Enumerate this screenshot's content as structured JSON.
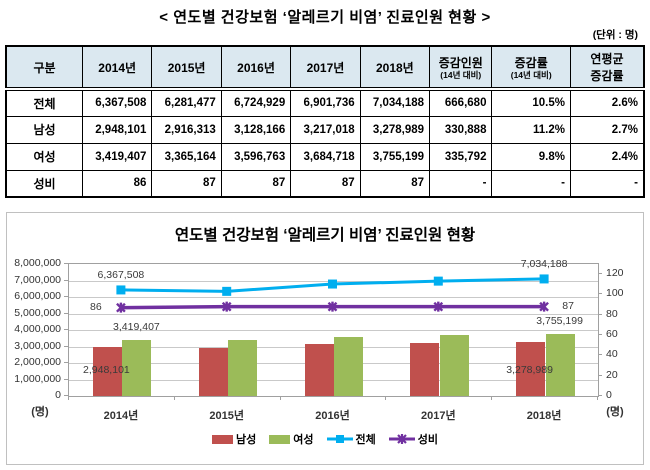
{
  "page": {
    "title": "< 연도별 건강보험 ‘알레르기 비염’ 진료인원 현황 >",
    "unit_note": "(단위 : 명)"
  },
  "table": {
    "columns": [
      {
        "label": "구분"
      },
      {
        "label": "2014년"
      },
      {
        "label": "2015년"
      },
      {
        "label": "2016년"
      },
      {
        "label": "2017년"
      },
      {
        "label": "2018년"
      },
      {
        "label": "증감인원",
        "sub": "(14년 대비)"
      },
      {
        "label": "증감률",
        "sub": "(14년 대비)"
      },
      {
        "label": "연평균",
        "label2": "증감률"
      }
    ],
    "rows": [
      {
        "name": "전체",
        "values": [
          "6,367,508",
          "6,281,477",
          "6,724,929",
          "6,901,736",
          "7,034,188",
          "666,680",
          "10.5%",
          "2.6%"
        ]
      },
      {
        "name": "남성",
        "values": [
          "2,948,101",
          "2,916,313",
          "3,128,166",
          "3,217,018",
          "3,278,989",
          "330,888",
          "11.2%",
          "2.7%"
        ]
      },
      {
        "name": "여성",
        "values": [
          "3,419,407",
          "3,365,164",
          "3,596,763",
          "3,684,718",
          "3,755,199",
          "335,792",
          "9.8%",
          "2.4%"
        ]
      },
      {
        "name": "성비",
        "values": [
          "86",
          "87",
          "87",
          "87",
          "87",
          "-",
          "-",
          "-"
        ]
      }
    ]
  },
  "chart_data": {
    "type": "bar",
    "subtype": "bar-line-combo",
    "title": "연도별 건강보험 ‘알레르기 비염’ 진료인원 현황",
    "categories": [
      "2014년",
      "2015년",
      "2016년",
      "2017년",
      "2018년"
    ],
    "series": [
      {
        "name": "남성",
        "type": "bar",
        "axis": "left",
        "color": "#C0504D",
        "values": [
          2948101,
          2916313,
          3128166,
          3217018,
          3278989
        ],
        "labels": {
          "0": "2,948,101",
          "4": "3,278,989"
        }
      },
      {
        "name": "여성",
        "type": "bar",
        "axis": "left",
        "color": "#9BBB59",
        "values": [
          3419407,
          3365164,
          3596763,
          3684718,
          3755199
        ],
        "labels": {
          "0": "3,419,407",
          "4": "3,755,199"
        }
      },
      {
        "name": "전체",
        "type": "line",
        "axis": "left",
        "color": "#00AEEF",
        "marker": "square",
        "values": [
          6367508,
          6281477,
          6724929,
          6901736,
          7034188
        ],
        "labels": {
          "0": "6,367,508",
          "4": "7,034,188"
        }
      },
      {
        "name": "성비",
        "type": "line",
        "axis": "right",
        "color": "#7030A0",
        "marker": "x",
        "values": [
          86,
          87,
          87,
          87,
          87
        ],
        "labels": {
          "0": "86",
          "4": "87"
        }
      }
    ],
    "left_axis": {
      "min": 0,
      "max": 8000000,
      "step": 1000000,
      "unit": "(명)"
    },
    "right_axis": {
      "min": 0,
      "max": 130,
      "step": 20,
      "max_label": 120,
      "unit": "(명)"
    },
    "grid": true,
    "legend_position": "bottom"
  }
}
